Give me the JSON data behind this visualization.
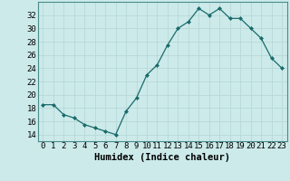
{
  "x": [
    0,
    1,
    2,
    3,
    4,
    5,
    6,
    7,
    8,
    9,
    10,
    11,
    12,
    13,
    14,
    15,
    16,
    17,
    18,
    19,
    20,
    21,
    22,
    23
  ],
  "y": [
    18.5,
    18.5,
    17.0,
    16.5,
    15.5,
    15.0,
    14.5,
    14.0,
    17.5,
    19.5,
    23.0,
    24.5,
    27.5,
    30.0,
    31.0,
    33.0,
    32.0,
    33.0,
    31.5,
    31.5,
    30.0,
    28.5,
    25.5,
    24.0
  ],
  "line_color": "#1a6b6b",
  "marker": "D",
  "marker_size": 2.0,
  "bg_color": "#cceaea",
  "grid_color": "#b8d8d8",
  "xlabel": "Humidex (Indice chaleur)",
  "xlim": [
    -0.5,
    23.5
  ],
  "ylim": [
    13,
    34
  ],
  "yticks": [
    14,
    16,
    18,
    20,
    22,
    24,
    26,
    28,
    30,
    32
  ],
  "xticks": [
    0,
    1,
    2,
    3,
    4,
    5,
    6,
    7,
    8,
    9,
    10,
    11,
    12,
    13,
    14,
    15,
    16,
    17,
    18,
    19,
    20,
    21,
    22,
    23
  ],
  "xlabel_fontsize": 7.5,
  "tick_fontsize": 6.5
}
